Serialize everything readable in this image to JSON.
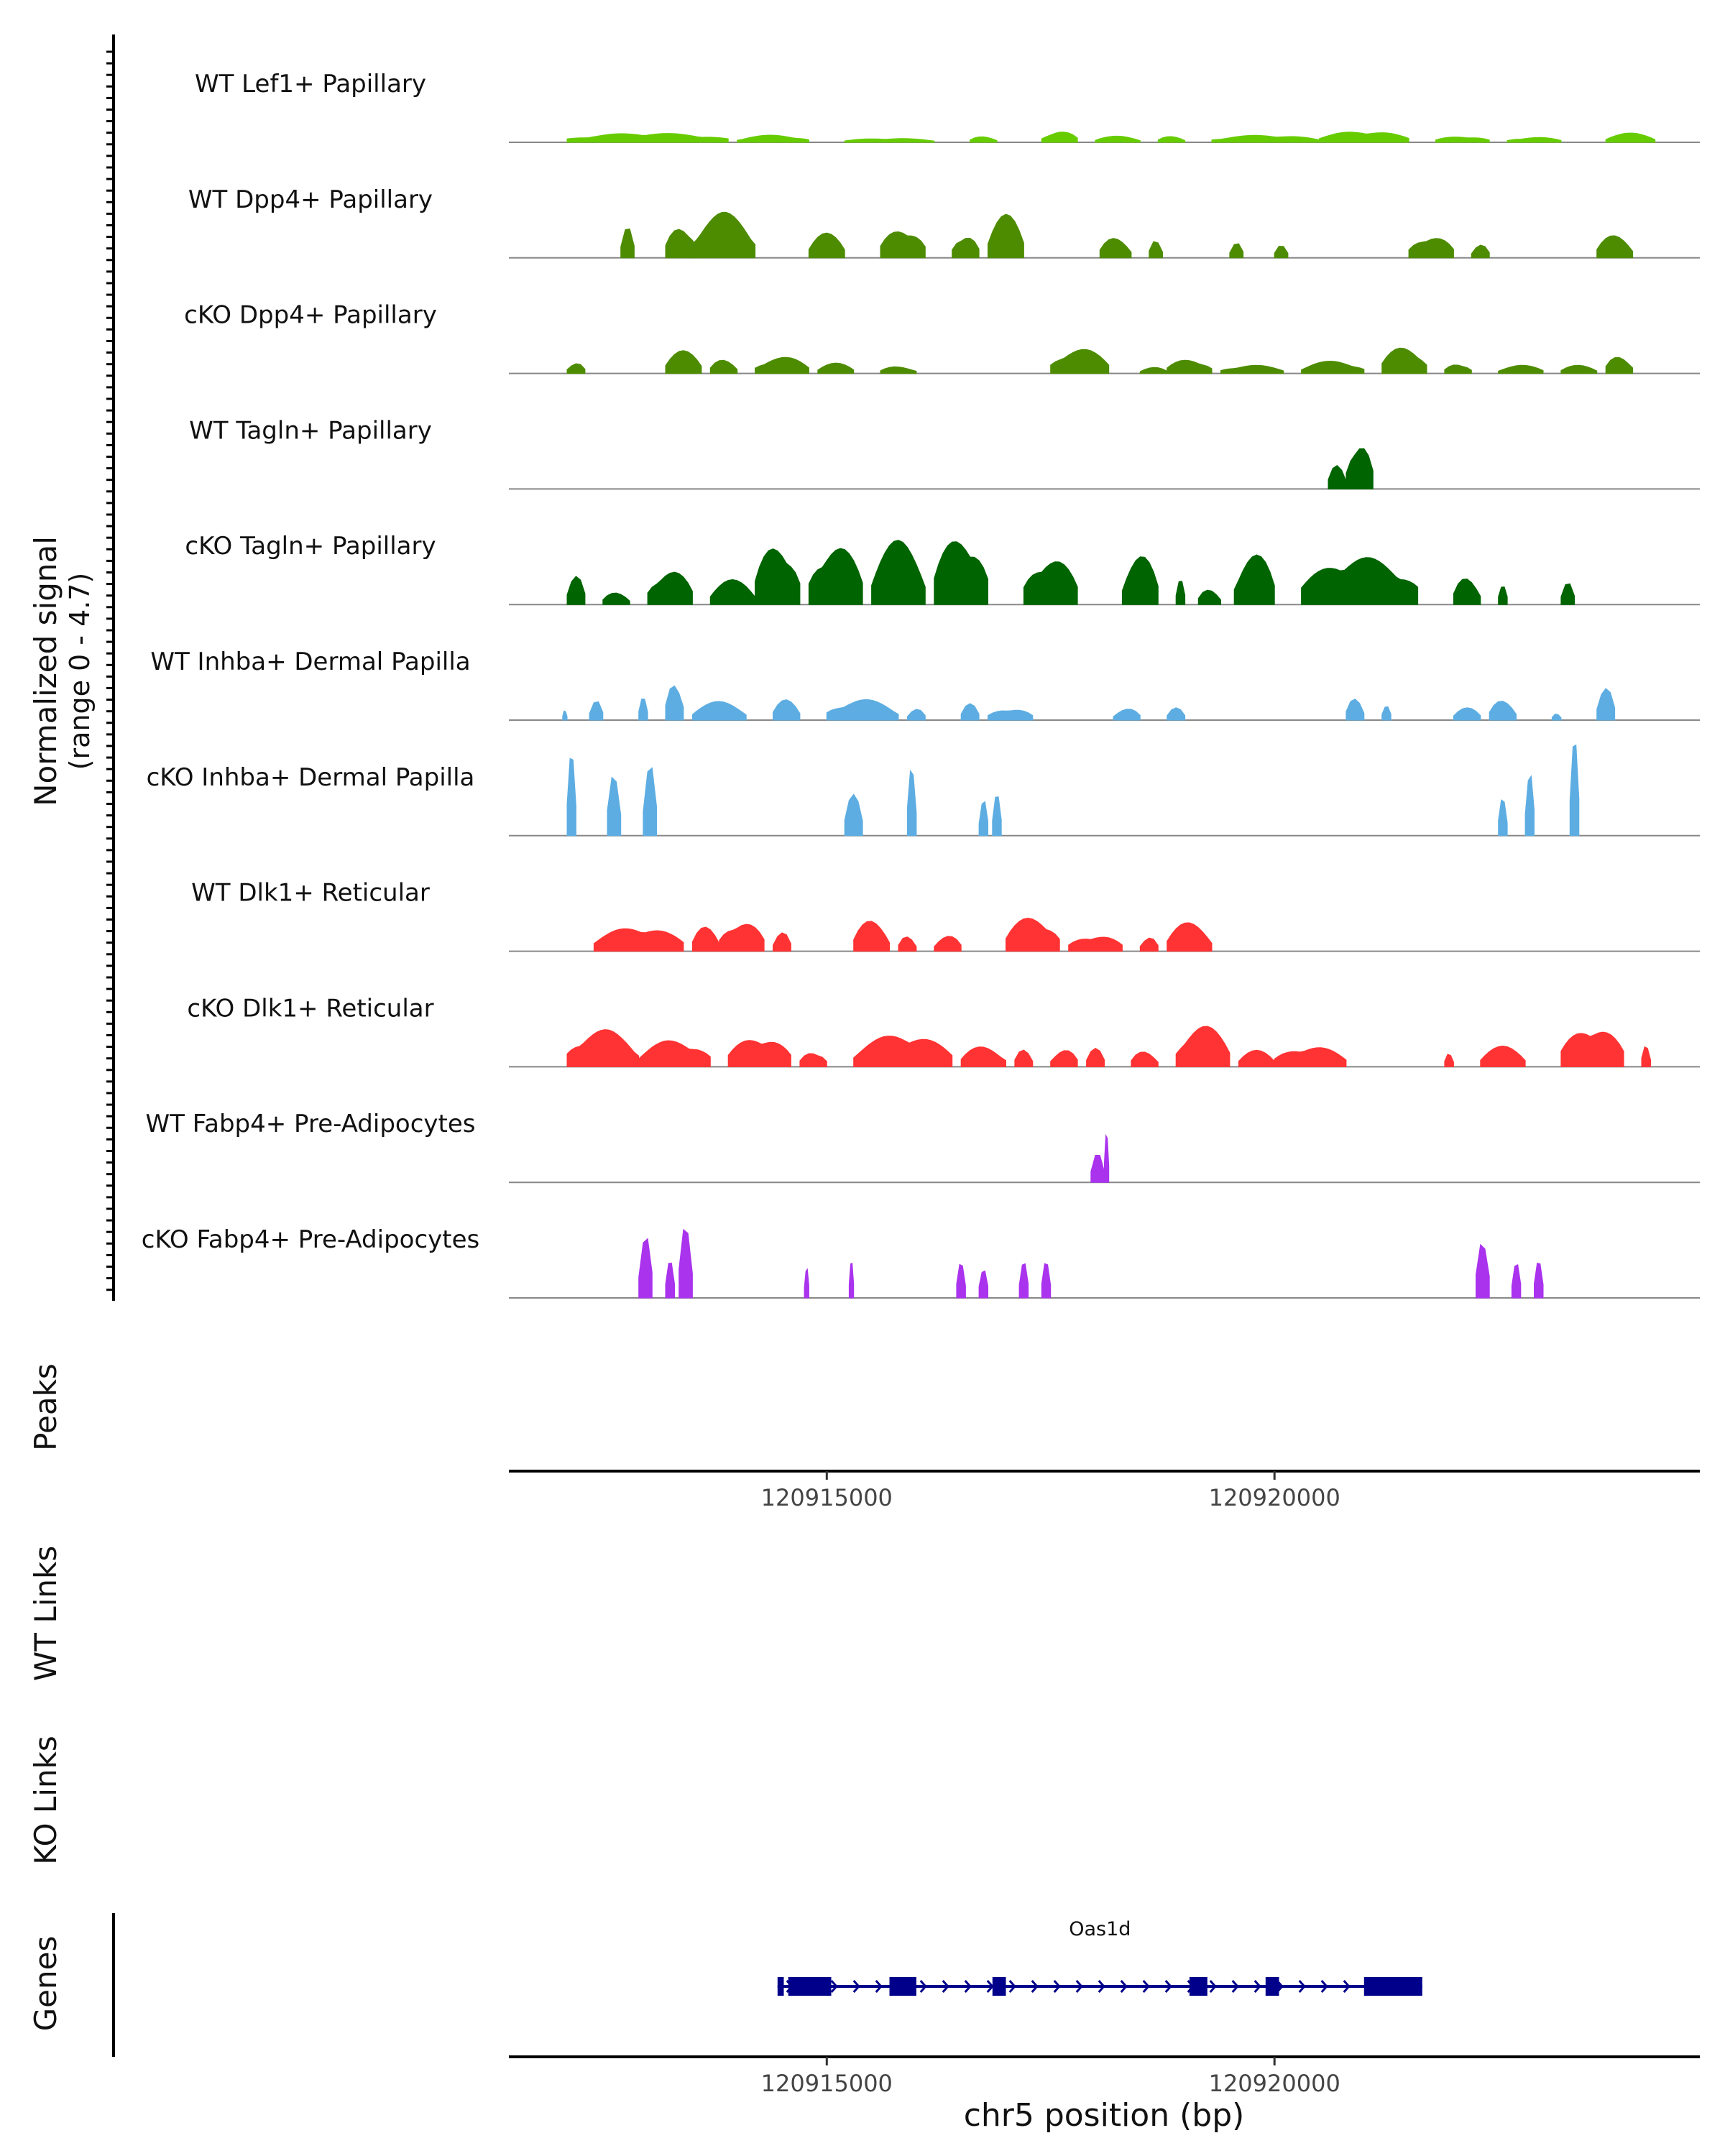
{
  "chart_data": {
    "type": "area",
    "title": "",
    "chromosome": "chr5",
    "xlabel": "chr5 position (bp)",
    "ylabel_line1": "Normalized signal",
    "ylabel_line2": "(range 0 - 4.7)",
    "ylim": [
      0,
      4.7
    ],
    "xlim": [
      120911450,
      120924750
    ],
    "xticks": [
      120915000,
      120920000
    ],
    "xtick_labels": [
      "120915000",
      "120920000"
    ],
    "panel_labels": {
      "peaks": "Peaks",
      "wt_links": "WT Links",
      "ko_links": "KO Links",
      "genes": "Genes"
    },
    "series": [
      {
        "name": "WT Lef1+ Papillary",
        "color": "#66CC00",
        "peaks": [
          [
            120912100,
            120913900,
            0.45
          ],
          [
            120914000,
            120914800,
            0.35
          ],
          [
            120915200,
            120916200,
            0.2
          ],
          [
            120916600,
            120916900,
            0.3
          ],
          [
            120917400,
            120917800,
            0.55
          ],
          [
            120918000,
            120918500,
            0.3
          ],
          [
            120918700,
            120919000,
            0.3
          ],
          [
            120919300,
            120920500,
            0.35
          ],
          [
            120920500,
            120921500,
            0.55
          ],
          [
            120921800,
            120922400,
            0.3
          ],
          [
            120922600,
            120923200,
            0.25
          ],
          [
            120923700,
            120924250,
            0.45
          ]
        ]
      },
      {
        "name": "WT Dpp4+ Papillary",
        "color": "#4D8C00",
        "peaks": [
          [
            120912700,
            120912850,
            1.5
          ],
          [
            120913200,
            120913550,
            1.6
          ],
          [
            120913500,
            120914200,
            2.2
          ],
          [
            120914800,
            120915200,
            1.2
          ],
          [
            120915600,
            120916100,
            1.5
          ],
          [
            120916400,
            120916700,
            1.2
          ],
          [
            120916800,
            120917200,
            2.1
          ],
          [
            120918050,
            120918400,
            1.0
          ],
          [
            120918600,
            120918750,
            1.0
          ],
          [
            120919500,
            120919650,
            0.8
          ],
          [
            120920000,
            120920150,
            0.6
          ],
          [
            120921500,
            120922000,
            1.1
          ],
          [
            120922200,
            120922400,
            0.7
          ],
          [
            120923600,
            120924000,
            1.1
          ]
        ]
      },
      {
        "name": "cKO Dpp4+ Papillary",
        "color": "#4D8C00",
        "peaks": [
          [
            120912100,
            120912300,
            0.6
          ],
          [
            120913200,
            120913600,
            1.1
          ],
          [
            120913700,
            120914000,
            0.7
          ],
          [
            120914200,
            120914800,
            0.8
          ],
          [
            120914900,
            120915300,
            0.5
          ],
          [
            120915600,
            120916000,
            0.35
          ],
          [
            120917500,
            120918150,
            1.2
          ],
          [
            120918500,
            120918800,
            0.3
          ],
          [
            120918800,
            120919300,
            0.7
          ],
          [
            120919400,
            120920100,
            0.4
          ],
          [
            120920300,
            120921000,
            0.6
          ],
          [
            120921200,
            120921700,
            1.3
          ],
          [
            120921900,
            120922200,
            0.5
          ],
          [
            120922500,
            120923000,
            0.4
          ],
          [
            120923200,
            120923600,
            0.4
          ],
          [
            120923700,
            120924000,
            0.9
          ]
        ]
      },
      {
        "name": "WT Tagln+ Papillary",
        "color": "#006400",
        "peaks": [
          [
            120920600,
            120920800,
            1.2
          ],
          [
            120920800,
            120921100,
            2.4
          ]
        ]
      },
      {
        "name": "cKO Tagln+ Papillary",
        "color": "#006400",
        "peaks": [
          [
            120912100,
            120912300,
            1.4
          ],
          [
            120912500,
            120912800,
            0.6
          ],
          [
            120913000,
            120913500,
            1.7
          ],
          [
            120913700,
            120914200,
            1.2
          ],
          [
            120914200,
            120914700,
            3.0
          ],
          [
            120914800,
            120915400,
            2.9
          ],
          [
            120915500,
            120916100,
            3.1
          ],
          [
            120916200,
            120916800,
            3.4
          ],
          [
            120917200,
            120917800,
            2.3
          ],
          [
            120918300,
            120918700,
            2.4
          ],
          [
            120918900,
            120919000,
            1.2
          ],
          [
            120919150,
            120919400,
            0.8
          ],
          [
            120919550,
            120920000,
            2.5
          ],
          [
            120920300,
            120921600,
            2.3
          ],
          [
            120922000,
            120922300,
            1.4
          ],
          [
            120922500,
            120922600,
            1.2
          ],
          [
            120923200,
            120923350,
            1.1
          ]
        ]
      },
      {
        "name": "WT Inhba+ Dermal Papilla",
        "color": "#5DADE2",
        "peaks": [
          [
            120912050,
            120912100,
            0.6
          ],
          [
            120912350,
            120912500,
            1.0
          ],
          [
            120912900,
            120913000,
            1.1
          ],
          [
            120913200,
            120913400,
            2.1
          ],
          [
            120913500,
            120914100,
            0.9
          ],
          [
            120914400,
            120914700,
            1.0
          ],
          [
            120915000,
            120915800,
            1.0
          ],
          [
            120915900,
            120916100,
            0.6
          ],
          [
            120916500,
            120916700,
            0.8
          ],
          [
            120916800,
            120917300,
            0.6
          ],
          [
            120918200,
            120918500,
            0.6
          ],
          [
            120918800,
            120919000,
            0.6
          ],
          [
            120920800,
            120921000,
            1.1
          ],
          [
            120921200,
            120921300,
            0.9
          ],
          [
            120922000,
            120922300,
            0.6
          ],
          [
            120922400,
            120922700,
            1.0
          ],
          [
            120923100,
            120923200,
            0.4
          ],
          [
            120923600,
            120923800,
            1.6
          ]
        ]
      },
      {
        "name": "cKO Inhba+ Dermal Papilla",
        "color": "#5DADE2",
        "peaks": [
          [
            120912100,
            120912200,
            4.0
          ],
          [
            120912550,
            120912700,
            3.6
          ],
          [
            120912950,
            120913100,
            3.8
          ],
          [
            120915200,
            120915400,
            2.0
          ],
          [
            120915900,
            120916000,
            3.8
          ],
          [
            120916700,
            120916800,
            2.0
          ],
          [
            120916850,
            120916950,
            2.0
          ],
          [
            120922500,
            120922600,
            2.0
          ],
          [
            120922800,
            120922900,
            3.7
          ],
          [
            120923300,
            120923400,
            4.7
          ]
        ]
      },
      {
        "name": "WT Dlk1+ Reticular",
        "color": "#FF3333",
        "peaks": [
          [
            120912400,
            120913400,
            1.2
          ],
          [
            120913500,
            120913800,
            1.2
          ],
          [
            120913800,
            120914300,
            1.5
          ],
          [
            120914400,
            120914600,
            1.0
          ],
          [
            120915300,
            120915700,
            1.5
          ],
          [
            120915800,
            120916000,
            0.8
          ],
          [
            120916200,
            120916500,
            0.8
          ],
          [
            120917000,
            120917600,
            1.7
          ],
          [
            120917700,
            120918300,
            0.8
          ],
          [
            120918500,
            120918700,
            0.8
          ],
          [
            120918800,
            120919300,
            1.4
          ]
        ]
      },
      {
        "name": "cKO Dlk1+ Reticular",
        "color": "#FF3333",
        "peaks": [
          [
            120912100,
            120912900,
            1.8
          ],
          [
            120912900,
            120913700,
            1.3
          ],
          [
            120913900,
            120914600,
            1.5
          ],
          [
            120914700,
            120915000,
            0.8
          ],
          [
            120915300,
            120916400,
            1.6
          ],
          [
            120916500,
            120917000,
            1.0
          ],
          [
            120917100,
            120917300,
            0.9
          ],
          [
            120917500,
            120917800,
            0.9
          ],
          [
            120917900,
            120918100,
            0.9
          ],
          [
            120918400,
            120918700,
            0.8
          ],
          [
            120918900,
            120919500,
            2.0
          ],
          [
            120919600,
            120920000,
            0.8
          ],
          [
            120920000,
            120920800,
            1.0
          ],
          [
            120921900,
            120922000,
            0.8
          ],
          [
            120922300,
            120922800,
            1.0
          ],
          [
            120923200,
            120923900,
            2.0
          ],
          [
            120924100,
            120924200,
            1.2
          ]
        ]
      },
      {
        "name": "WT Fabp4+ Pre-Adipocytes",
        "color": "#AA33EE",
        "peaks": [
          [
            120917950,
            120918100,
            1.4
          ],
          [
            120918100,
            120918150,
            2.7
          ]
        ]
      },
      {
        "name": "cKO Fabp4+ Pre-Adipocytes",
        "color": "#AA33EE",
        "peaks": [
          [
            120912900,
            120913050,
            3.5
          ],
          [
            120913200,
            120913300,
            1.8
          ],
          [
            120913350,
            120913500,
            3.8
          ],
          [
            120914750,
            120914800,
            1.8
          ],
          [
            120915250,
            120915300,
            1.8
          ],
          [
            120916450,
            120916550,
            1.8
          ],
          [
            120916700,
            120916800,
            1.8
          ],
          [
            120917150,
            120917250,
            1.8
          ],
          [
            120917400,
            120917500,
            1.8
          ],
          [
            120922250,
            120922400,
            3.5
          ],
          [
            120922650,
            120922750,
            1.8
          ],
          [
            120922900,
            120923000,
            1.8
          ]
        ]
      }
    ],
    "gene": {
      "name": "Oas1d",
      "start": 120914450,
      "end": 120921650,
      "strand": "+",
      "exons": [
        [
          120914450,
          120914520
        ],
        [
          120914570,
          120915050
        ],
        [
          120915700,
          120916000
        ],
        [
          120916850,
          120917000
        ],
        [
          120919050,
          120919250
        ],
        [
          120919900,
          120920050
        ],
        [
          120921000,
          120921650
        ]
      ]
    }
  }
}
